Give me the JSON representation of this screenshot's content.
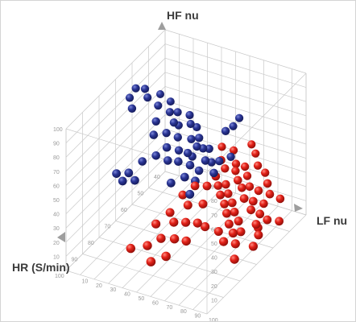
{
  "chart_data": {
    "type": "scatter",
    "projection": "3d",
    "grid": true,
    "axes": {
      "x": {
        "label": "LF nu",
        "range": [
          0,
          100
        ],
        "ticks": [
          10,
          20,
          30,
          40,
          50,
          60,
          70,
          80,
          90,
          100
        ]
      },
      "y": {
        "label": "HR (S/min)",
        "range": [
          40,
          100
        ],
        "ticks": [
          40,
          50,
          60,
          70,
          80,
          90,
          100
        ]
      },
      "z": {
        "label": "HF nu",
        "range": [
          0,
          100
        ],
        "ticks": [
          10,
          20,
          30,
          40,
          50,
          60,
          70,
          80,
          90,
          100
        ]
      }
    },
    "series": [
      {
        "color": "#2a3595",
        "points": [
          [
            12,
            68,
            95
          ],
          [
            15,
            65,
            92
          ],
          [
            10,
            70,
            90
          ],
          [
            18,
            66,
            88
          ],
          [
            14,
            72,
            86
          ],
          [
            20,
            60,
            84
          ],
          [
            22,
            63,
            80
          ],
          [
            25,
            58,
            78
          ],
          [
            28,
            61,
            75
          ],
          [
            24,
            66,
            73
          ],
          [
            30,
            58,
            72
          ],
          [
            32,
            62,
            70
          ],
          [
            27,
            70,
            69
          ],
          [
            35,
            55,
            68
          ],
          [
            33,
            60,
            66
          ],
          [
            38,
            57,
            65
          ],
          [
            29,
            64,
            64
          ],
          [
            36,
            63,
            62
          ],
          [
            40,
            55,
            61
          ],
          [
            34,
            68,
            60
          ],
          [
            42,
            60,
            59
          ],
          [
            31,
            72,
            58
          ],
          [
            44,
            57,
            57
          ],
          [
            39,
            65,
            56
          ],
          [
            46,
            60,
            55
          ],
          [
            37,
            70,
            54
          ],
          [
            43,
            63,
            53
          ],
          [
            48,
            58,
            52
          ],
          [
            41,
            67,
            51
          ],
          [
            45,
            62,
            50
          ],
          [
            50,
            56,
            50
          ],
          [
            47,
            65,
            48
          ],
          [
            52,
            60,
            47
          ],
          [
            49,
            70,
            46
          ],
          [
            44,
            74,
            45
          ],
          [
            54,
            58,
            44
          ],
          [
            51,
            63,
            43
          ],
          [
            56,
            55,
            42
          ],
          [
            53,
            67,
            41
          ],
          [
            58,
            60,
            40
          ],
          [
            26,
            76,
            57
          ],
          [
            21,
            80,
            52
          ],
          [
            19,
            82,
            48
          ],
          [
            23,
            78,
            45
          ],
          [
            17,
            84,
            55
          ],
          [
            60,
            50,
            62
          ],
          [
            62,
            48,
            66
          ],
          [
            57,
            52,
            60
          ],
          [
            63,
            54,
            46
          ],
          [
            55,
            72,
            38
          ]
        ]
      },
      {
        "color": "#e32118",
        "points": [
          [
            52,
            50,
            45
          ],
          [
            55,
            53,
            40
          ],
          [
            58,
            48,
            42
          ],
          [
            60,
            55,
            38
          ],
          [
            62,
            50,
            36
          ],
          [
            57,
            58,
            35
          ],
          [
            64,
            52,
            34
          ],
          [
            66,
            48,
            33
          ],
          [
            61,
            60,
            32
          ],
          [
            68,
            54,
            31
          ],
          [
            63,
            57,
            30
          ],
          [
            70,
            50,
            30
          ],
          [
            65,
            62,
            29
          ],
          [
            72,
            55,
            28
          ],
          [
            67,
            59,
            27
          ],
          [
            74,
            52,
            26
          ],
          [
            69,
            63,
            25
          ],
          [
            76,
            57,
            24
          ],
          [
            71,
            60,
            23
          ],
          [
            78,
            50,
            22
          ],
          [
            73,
            65,
            22
          ],
          [
            80,
            55,
            21
          ],
          [
            75,
            62,
            20
          ],
          [
            82,
            58,
            19
          ],
          [
            77,
            67,
            18
          ],
          [
            84,
            52,
            17
          ],
          [
            79,
            63,
            16
          ],
          [
            86,
            56,
            15
          ],
          [
            81,
            68,
            14
          ],
          [
            88,
            60,
            13
          ],
          [
            83,
            65,
            12
          ],
          [
            90,
            55,
            11
          ],
          [
            85,
            70,
            10
          ],
          [
            92,
            62,
            9
          ],
          [
            87,
            58,
            8
          ],
          [
            59,
            65,
            37
          ],
          [
            54,
            68,
            39
          ],
          [
            50,
            72,
            36
          ],
          [
            56,
            74,
            33
          ],
          [
            62,
            70,
            31
          ],
          [
            48,
            78,
            30
          ],
          [
            53,
            80,
            27
          ],
          [
            58,
            77,
            25
          ],
          [
            64,
            75,
            24
          ],
          [
            45,
            84,
            28
          ],
          [
            51,
            86,
            22
          ],
          [
            57,
            83,
            20
          ],
          [
            63,
            81,
            18
          ],
          [
            46,
            90,
            20
          ],
          [
            52,
            93,
            14
          ],
          [
            40,
            95,
            22
          ],
          [
            58,
            89,
            15
          ],
          [
            67,
            73,
            20
          ],
          [
            73,
            70,
            15
          ],
          [
            79,
            72,
            12
          ],
          [
            95,
            52,
            8
          ],
          [
            93,
            66,
            6
          ],
          [
            89,
            74,
            5
          ],
          [
            70,
            45,
            40
          ],
          [
            74,
            47,
            35
          ],
          [
            66,
            44,
            44
          ],
          [
            78,
            46,
            30
          ],
          [
            82,
            48,
            26
          ],
          [
            86,
            50,
            22
          ],
          [
            91,
            48,
            18
          ]
        ]
      }
    ]
  }
}
